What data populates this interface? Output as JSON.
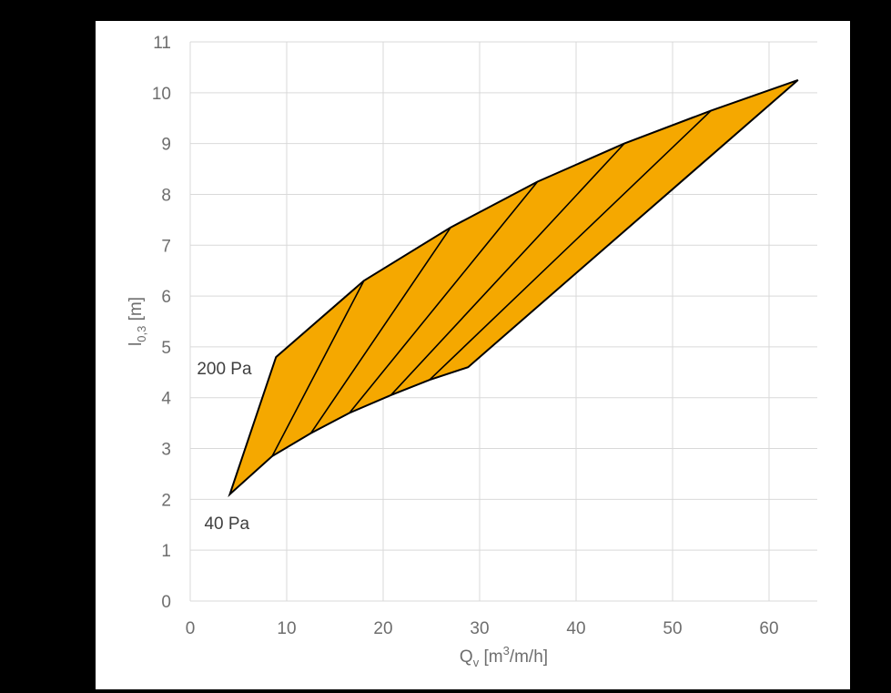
{
  "chart_data": {
    "type": "area",
    "xlabel": {
      "main": "Q",
      "sub": "v",
      "rest_before_sup": " [m",
      "sup": "3",
      "rest_after_sup": "/m/h]"
    },
    "ylabel": {
      "main": "l",
      "sub": "0,3",
      "rest": " [m]"
    },
    "xlim": [
      0,
      65
    ],
    "ylim": [
      0,
      11
    ],
    "x_ticks": [
      0,
      10,
      20,
      30,
      40,
      50,
      60
    ],
    "y_ticks": [
      0,
      1,
      2,
      3,
      4,
      5,
      6,
      7,
      8,
      9,
      10,
      11
    ],
    "grid": true,
    "colors": {
      "fill": "#F5A800",
      "outline": "#000000",
      "grid": "#d9d9d9"
    },
    "region": {
      "upper_boundary": [
        [
          4.1,
          2.1
        ],
        [
          8.9,
          4.8
        ],
        [
          18.0,
          6.3
        ],
        [
          27.0,
          7.35
        ],
        [
          36.0,
          8.25
        ],
        [
          45.0,
          9.0
        ],
        [
          54.0,
          9.65
        ],
        [
          63.0,
          10.25
        ]
      ],
      "lower_boundary": [
        [
          4.1,
          2.1
        ],
        [
          8.5,
          2.85
        ],
        [
          12.5,
          3.3
        ],
        [
          16.5,
          3.7
        ],
        [
          20.8,
          4.05
        ],
        [
          24.8,
          4.35
        ],
        [
          28.8,
          4.6
        ],
        [
          63.0,
          10.25
        ]
      ]
    },
    "isobars": [
      [
        [
          8.5,
          2.85
        ],
        [
          18.0,
          6.3
        ]
      ],
      [
        [
          12.5,
          3.3
        ],
        [
          27.0,
          7.35
        ]
      ],
      [
        [
          16.5,
          3.7
        ],
        [
          36.0,
          8.25
        ]
      ],
      [
        [
          20.8,
          4.05
        ],
        [
          45.0,
          9.0
        ]
      ],
      [
        [
          24.8,
          4.35
        ],
        [
          54.0,
          9.65
        ]
      ]
    ],
    "annotations": [
      {
        "text": "200 Pa",
        "x": 8.9,
        "y": 4.8
      },
      {
        "text": "40 Pa",
        "x": 4.1,
        "y": 2.1
      }
    ]
  }
}
